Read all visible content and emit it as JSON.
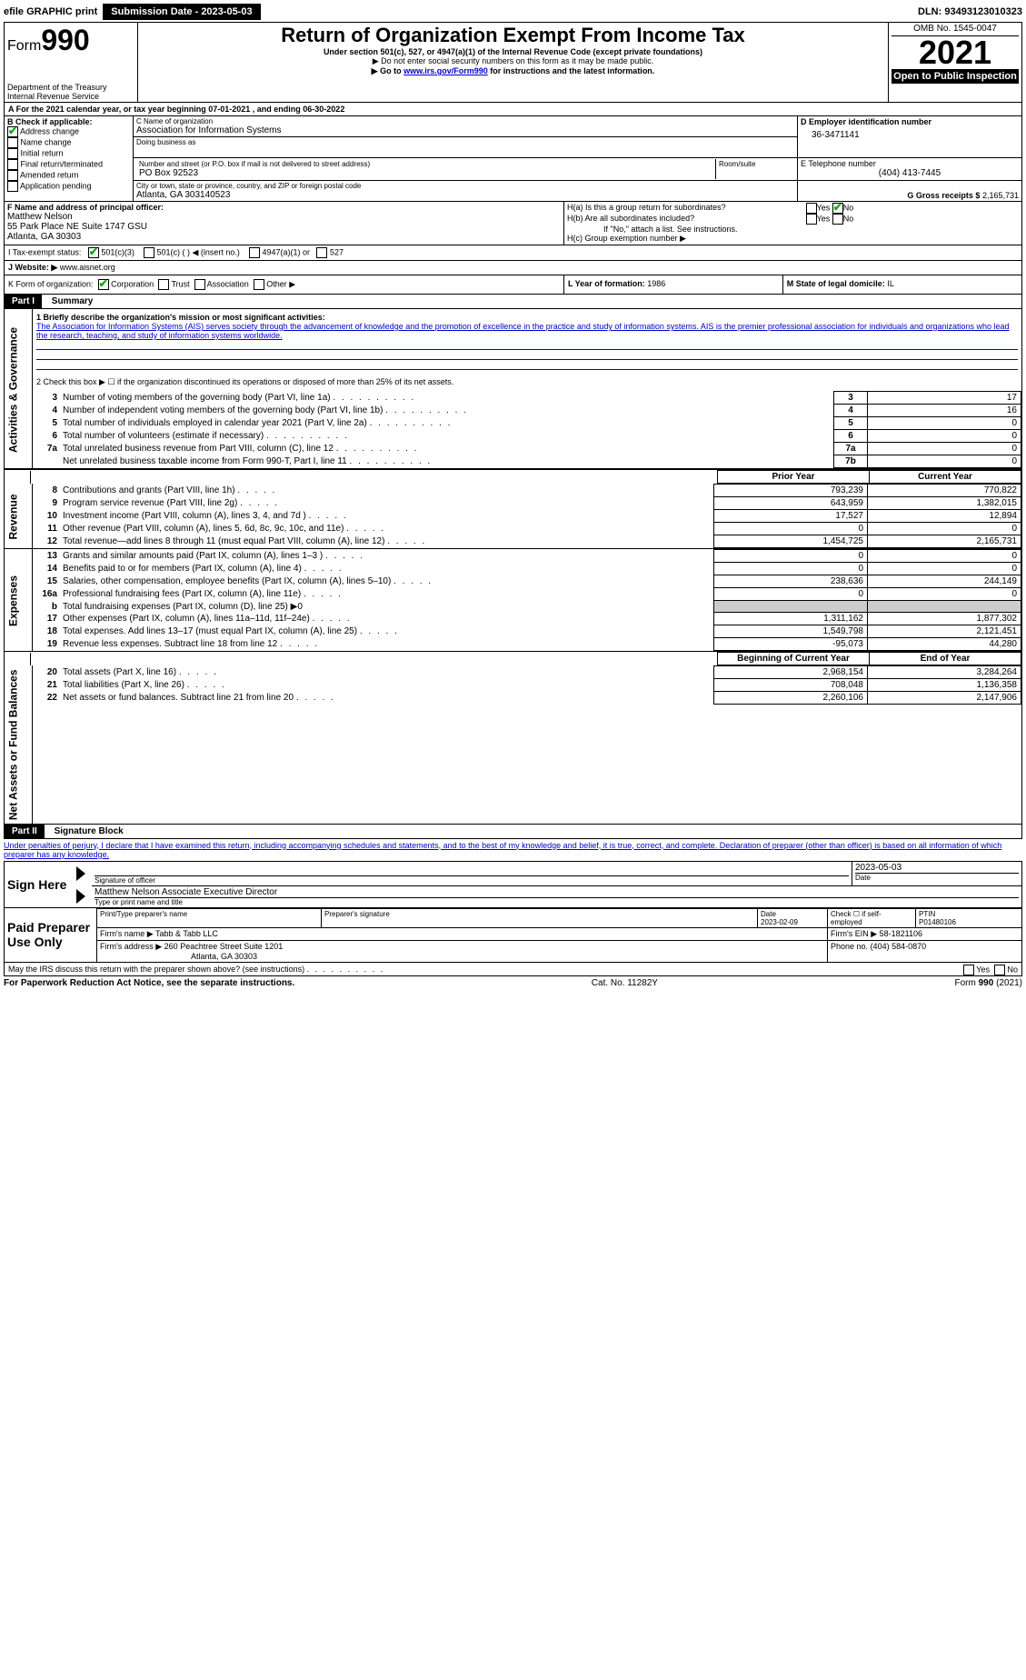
{
  "topbar": {
    "efile": "efile GRAPHIC print",
    "submission": "Submission Date - 2023-05-03",
    "dln": "DLN: 93493123010323"
  },
  "header": {
    "form_prefix": "Form",
    "form_number": "990",
    "dept1": "Department of the Treasury",
    "dept2": "Internal Revenue Service",
    "title": "Return of Organization Exempt From Income Tax",
    "subtitle1": "Under section 501(c), 527, or 4947(a)(1) of the Internal Revenue Code (except private foundations)",
    "subtitle2": "▶ Do not enter social security numbers on this form as it may be made public.",
    "subtitle3_pre": "▶ Go to ",
    "subtitle3_link": "www.irs.gov/Form990",
    "subtitle3_post": " for instructions and the latest information.",
    "omb": "OMB No. 1545-0047",
    "year": "2021",
    "open": "Open to Public Inspection"
  },
  "period": {
    "line": "A For the 2021 calendar year, or tax year beginning 07-01-2021    , and ending 06-30-2022"
  },
  "boxB": {
    "heading": "B Check if applicable:",
    "items": [
      "Address change",
      "Name change",
      "Initial return",
      "Final return/terminated",
      "Amended return",
      "Application pending"
    ]
  },
  "boxC": {
    "name_label": "C Name of organization",
    "name": "Association for Information Systems",
    "dba_label": "Doing business as",
    "addr_label": "Number and street (or P.O. box if mail is not delivered to street address)",
    "room_label": "Room/suite",
    "addr": "PO Box 92523",
    "city_label": "City or town, state or province, country, and ZIP or foreign postal code",
    "city": "Atlanta, GA  303140523"
  },
  "boxD": {
    "label": "D Employer identification number",
    "value": "36-3471141"
  },
  "boxE": {
    "label": "E Telephone number",
    "value": "(404) 413-7445"
  },
  "boxG": {
    "label": "G Gross receipts $",
    "value": "2,165,731"
  },
  "boxF": {
    "label": "F  Name and address of principal officer:",
    "name": "Matthew Nelson",
    "addr1": "55 Park Place NE Suite 1747 GSU",
    "addr2": "Atlanta, GA  30303"
  },
  "boxH": {
    "a": "H(a)  Is this a group return for subordinates?",
    "b": "H(b)  Are all subordinates included?",
    "b_note": "If \"No,\" attach a list. See instructions.",
    "c": "H(c)  Group exemption number ▶",
    "yes": "Yes",
    "no": "No"
  },
  "boxI": {
    "label": "I    Tax-exempt status:",
    "opt1": "501(c)(3)",
    "opt2": "501(c) (  ) ◀ (insert no.)",
    "opt3": "4947(a)(1) or",
    "opt4": "527"
  },
  "boxJ": {
    "label": "J   Website: ▶ ",
    "value": "www.aisnet.org"
  },
  "boxK": {
    "label": "K Form of organization:",
    "opts": [
      "Corporation",
      "Trust",
      "Association",
      "Other ▶"
    ]
  },
  "boxL": {
    "label": "L Year of formation:",
    "value": "1986"
  },
  "boxM": {
    "label": "M State of legal domicile:",
    "value": "IL"
  },
  "part1": {
    "header": "Part I      Summary",
    "line1_label": "1  Briefly describe the organization's mission or most significant activities:",
    "mission": "The Association for Information Systems (AIS) serves society through the advancement of knowledge and the promotion of excellence in the practice and study of information systems. AIS is the premier professional association for individuals and organizations who lead the research, teaching, and study of information systems worldwide.",
    "line2": "2  Check this box ▶ ☐ if the organization discontinued its operations or disposed of more than 25% of its net assets.",
    "tabs": {
      "ag": "Activities & Governance",
      "rev": "Revenue",
      "exp": "Expenses",
      "net": "Net Assets or Fund Balances"
    },
    "rows_ag": [
      {
        "n": "3",
        "t": "Number of voting members of the governing body (Part VI, line 1a)",
        "k": "3",
        "v": "17"
      },
      {
        "n": "4",
        "t": "Number of independent voting members of the governing body (Part VI, line 1b)",
        "k": "4",
        "v": "16"
      },
      {
        "n": "5",
        "t": "Total number of individuals employed in calendar year 2021 (Part V, line 2a)",
        "k": "5",
        "v": "0"
      },
      {
        "n": "6",
        "t": "Total number of volunteers (estimate if necessary)",
        "k": "6",
        "v": "0"
      },
      {
        "n": "7a",
        "t": "Total unrelated business revenue from Part VIII, column (C), line 12",
        "k": "7a",
        "v": "0"
      },
      {
        "n": "",
        "t": "Net unrelated business taxable income from Form 990-T, Part I, line 11",
        "k": "7b",
        "v": "0"
      }
    ],
    "col_prior": "Prior Year",
    "col_current": "Current Year",
    "col_begin": "Beginning of Current Year",
    "col_end": "End of Year",
    "rows_rev": [
      {
        "n": "8",
        "t": "Contributions and grants (Part VIII, line 1h)",
        "p": "793,239",
        "c": "770,822"
      },
      {
        "n": "9",
        "t": "Program service revenue (Part VIII, line 2g)",
        "p": "643,959",
        "c": "1,382,015"
      },
      {
        "n": "10",
        "t": "Investment income (Part VIII, column (A), lines 3, 4, and 7d )",
        "p": "17,527",
        "c": "12,894"
      },
      {
        "n": "11",
        "t": "Other revenue (Part VIII, column (A), lines 5, 6d, 8c, 9c, 10c, and 11e)",
        "p": "0",
        "c": "0"
      },
      {
        "n": "12",
        "t": "Total revenue—add lines 8 through 11 (must equal Part VIII, column (A), line 12)",
        "p": "1,454,725",
        "c": "2,165,731"
      }
    ],
    "rows_exp": [
      {
        "n": "13",
        "t": "Grants and similar amounts paid (Part IX, column (A), lines 1–3 )",
        "p": "0",
        "c": "0"
      },
      {
        "n": "14",
        "t": "Benefits paid to or for members (Part IX, column (A), line 4)",
        "p": "0",
        "c": "0"
      },
      {
        "n": "15",
        "t": "Salaries, other compensation, employee benefits (Part IX, column (A), lines 5–10)",
        "p": "238,636",
        "c": "244,149"
      },
      {
        "n": "16a",
        "t": "Professional fundraising fees (Part IX, column (A), line 11e)",
        "p": "0",
        "c": "0"
      },
      {
        "n": "b",
        "t": "Total fundraising expenses (Part IX, column (D), line 25) ▶0",
        "p": "",
        "c": ""
      },
      {
        "n": "17",
        "t": "Other expenses (Part IX, column (A), lines 11a–11d, 11f–24e)",
        "p": "1,311,162",
        "c": "1,877,302"
      },
      {
        "n": "18",
        "t": "Total expenses. Add lines 13–17 (must equal Part IX, column (A), line 25)",
        "p": "1,549,798",
        "c": "2,121,451"
      },
      {
        "n": "19",
        "t": "Revenue less expenses. Subtract line 18 from line 12",
        "p": "-95,073",
        "c": "44,280"
      }
    ],
    "rows_net": [
      {
        "n": "20",
        "t": "Total assets (Part X, line 16)",
        "p": "2,968,154",
        "c": "3,284,264"
      },
      {
        "n": "21",
        "t": "Total liabilities (Part X, line 26)",
        "p": "708,048",
        "c": "1,136,358"
      },
      {
        "n": "22",
        "t": "Net assets or fund balances. Subtract line 21 from line 20",
        "p": "2,260,106",
        "c": "2,147,906"
      }
    ]
  },
  "part2": {
    "header": "Part II     Signature Block",
    "declaration": "Under penalties of perjury, I declare that I have examined this return, including accompanying schedules and statements, and to the best of my knowledge and belief, it is true, correct, and complete. Declaration of preparer (other than officer) is based on all information of which preparer has any knowledge.",
    "sign_here": "Sign Here",
    "sig_officer": "Signature of officer",
    "sig_date": "2023-05-03",
    "sig_name": "Matthew Nelson Associate Executive Director",
    "sig_name_label": "Type or print name and title",
    "date_label": "Date",
    "paid": "Paid Preparer Use Only",
    "p_name_label": "Print/Type preparer's name",
    "p_sig_label": "Preparer's signature",
    "p_date_label": "Date",
    "p_date": "2023-02-09",
    "p_check": "Check ☐ if self-employed",
    "ptin_label": "PTIN",
    "ptin": "P01480106",
    "firm_name_label": "Firm's name     ▶",
    "firm_name": "Tabb & Tabb LLC",
    "firm_ein_label": "Firm's EIN ▶",
    "firm_ein": "58-1821106",
    "firm_addr_label": "Firm's address ▶",
    "firm_addr1": "260 Peachtree Street Suite 1201",
    "firm_addr2": "Atlanta, GA  30303",
    "phone_label": "Phone no.",
    "phone": "(404) 584-0870",
    "discuss": "May the IRS discuss this return with the preparer shown above? (see instructions)"
  },
  "footer": {
    "left": "For Paperwork Reduction Act Notice, see the separate instructions.",
    "mid": "Cat. No. 11282Y",
    "right_pre": "Form ",
    "right_bold": "990",
    "right_post": " (2021)"
  }
}
